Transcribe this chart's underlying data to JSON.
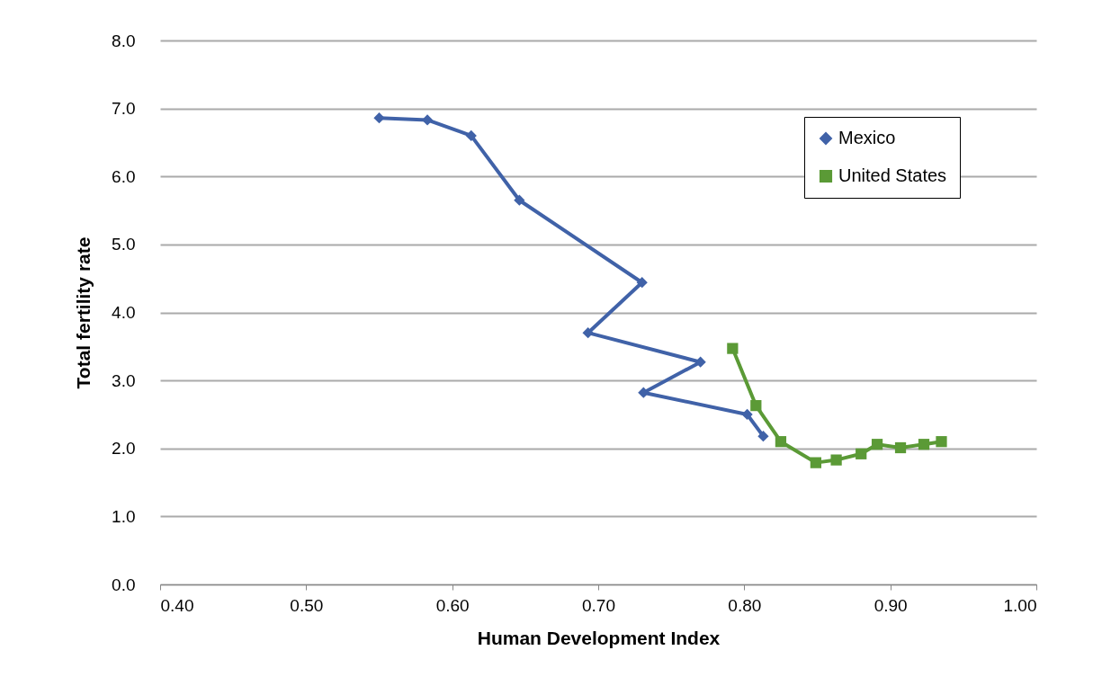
{
  "chart_data": {
    "type": "line",
    "xlabel": "Human Development Index",
    "ylabel": "Total fertility rate",
    "xlim": [
      0.4,
      1.0
    ],
    "xticks": [
      {
        "value": 0.4,
        "label": "0.40"
      },
      {
        "value": 0.5,
        "label": "0.50"
      },
      {
        "value": 0.6,
        "label": "0.60"
      },
      {
        "value": 0.7,
        "label": "0.70"
      },
      {
        "value": 0.8,
        "label": "0.80"
      },
      {
        "value": 0.9,
        "label": "0.90"
      },
      {
        "value": 1.0,
        "label": "1.00"
      }
    ],
    "ylim": [
      0,
      8
    ],
    "yticks": [
      {
        "value": 0,
        "label": "0.0"
      },
      {
        "value": 1,
        "label": "1.0"
      },
      {
        "value": 2,
        "label": "2.0"
      },
      {
        "value": 3,
        "label": "3.0"
      },
      {
        "value": 4,
        "label": "4.0"
      },
      {
        "value": 5,
        "label": "5.0"
      },
      {
        "value": 6,
        "label": "6.0"
      },
      {
        "value": 7,
        "label": "7.0"
      },
      {
        "value": 8,
        "label": "8.0"
      }
    ],
    "grid": "y",
    "legend": "top right",
    "line_style": "solid",
    "series": [
      {
        "name": "Mexico",
        "color": "#4062a8",
        "marker": "diamond",
        "x": [
          0.55,
          0.583,
          0.613,
          0.646,
          0.73,
          0.693,
          0.77,
          0.731,
          0.802,
          0.813
        ],
        "values": [
          6.86,
          6.83,
          6.6,
          5.65,
          4.44,
          3.7,
          3.27,
          2.82,
          2.5,
          2.18
        ]
      },
      {
        "name": "United States",
        "color": "#5b9a36",
        "marker": "square",
        "x": [
          0.792,
          0.808,
          0.825,
          0.849,
          0.863,
          0.88,
          0.891,
          0.907,
          0.923,
          0.935
        ],
        "values": [
          3.47,
          2.63,
          2.1,
          1.79,
          1.83,
          1.92,
          2.06,
          2.01,
          2.06,
          2.1
        ]
      }
    ]
  }
}
